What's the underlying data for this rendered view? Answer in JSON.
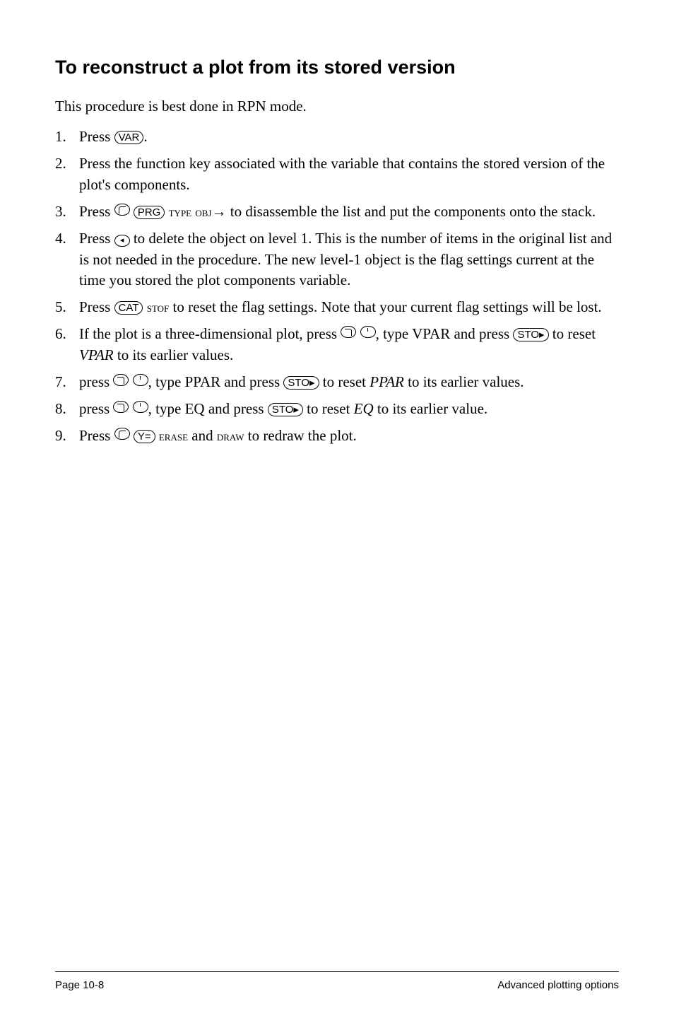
{
  "heading": "To reconstruct a plot from its stored version",
  "intro": "This procedure is best done in RPN mode.",
  "keys": {
    "var": "VAR",
    "prg": "PRG",
    "cat": "CAT",
    "sto": "STO▸",
    "yeq": "Y=",
    "back": "◂"
  },
  "menu": {
    "type": "type",
    "obj": "obj",
    "stof": "stof",
    "erase": "erase",
    "draw": "draw"
  },
  "items": {
    "s1a": "Press ",
    "s1b": ".",
    "s2": "Press the function key associated with the variable that contains the stored version of the plot's components.",
    "s3a": "Press ",
    "s3b": "→ to disassemble the list and put the components onto the stack.",
    "s4a": "Press ",
    "s4b": " to delete the object on level 1. This is the number of items in the original list and is not needed in the procedure. The new level-1 object is the flag settings current at the time you stored the plot components variable.",
    "s5a": "Press ",
    "s5b": " to reset the flag settings. Note that your current flag settings will be lost.",
    "s6a": "If the plot is a three-dimensional plot, press ",
    "s6b": ", type VPAR and press ",
    "s6c": " to reset ",
    "s6_vpar": "VPAR",
    "s6d": " to its earlier values.",
    "s7a": "press ",
    "s7b": ", type PPAR and press ",
    "s7c": " to reset ",
    "s7_ppar": "PPAR",
    "s7d": " to its earlier values.",
    "s8a": "press ",
    "s8b": ", type EQ and press ",
    "s8c": " to reset ",
    "s8_eq": "EQ",
    "s8d": " to its earlier value.",
    "s9a": "Press ",
    "s9b": " and ",
    "s9c": " to redraw the plot."
  },
  "footer": {
    "left": "Page 10-8",
    "right": "Advanced plotting options"
  }
}
